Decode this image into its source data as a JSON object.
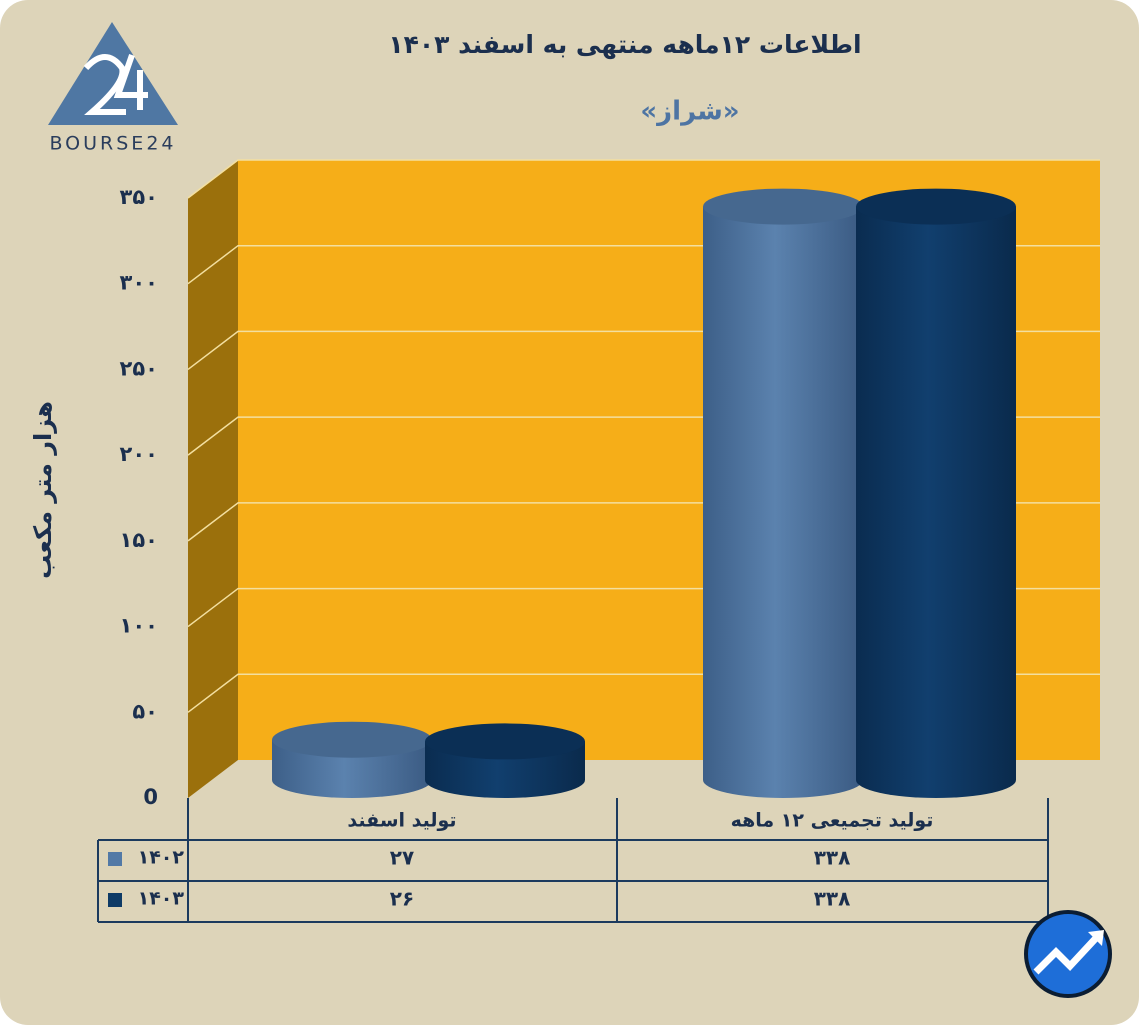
{
  "brand": "BOURSE24",
  "chart_data": {
    "type": "bar",
    "title": "اطلاعات ۱۲ماهه منتهی به اسفند ۱۴۰۳",
    "subtitle": "«شراز»",
    "y_label": "هزار متر مکعب",
    "categories": [
      "تولید اسفند",
      "تولید تجمیعی ۱۲ ماهه"
    ],
    "series": [
      {
        "name": "۱۴۰۲",
        "color": "#5279a6",
        "values": [
          27,
          338
        ],
        "value_labels": [
          "۲۷",
          "۳۳۸"
        ]
      },
      {
        "name": "۱۴۰۳",
        "color": "#0e3a66",
        "values": [
          26,
          338
        ],
        "value_labels": [
          "۲۶",
          "۳۳۸"
        ]
      }
    ],
    "ylim": [
      0,
      350
    ],
    "yticks": [
      0,
      {
        "value": 50,
        "label": "۵۰"
      },
      {
        "value": 100,
        "label": "۱۰۰"
      },
      {
        "value": 150,
        "label": "۱۵۰"
      },
      {
        "value": 200,
        "label": "۲۰۰"
      },
      {
        "value": 250,
        "label": "۲۵۰"
      },
      {
        "value": 300,
        "label": "۳۰۰"
      },
      {
        "value": 350,
        "label": "۳۵۰"
      }
    ],
    "grid": true
  }
}
